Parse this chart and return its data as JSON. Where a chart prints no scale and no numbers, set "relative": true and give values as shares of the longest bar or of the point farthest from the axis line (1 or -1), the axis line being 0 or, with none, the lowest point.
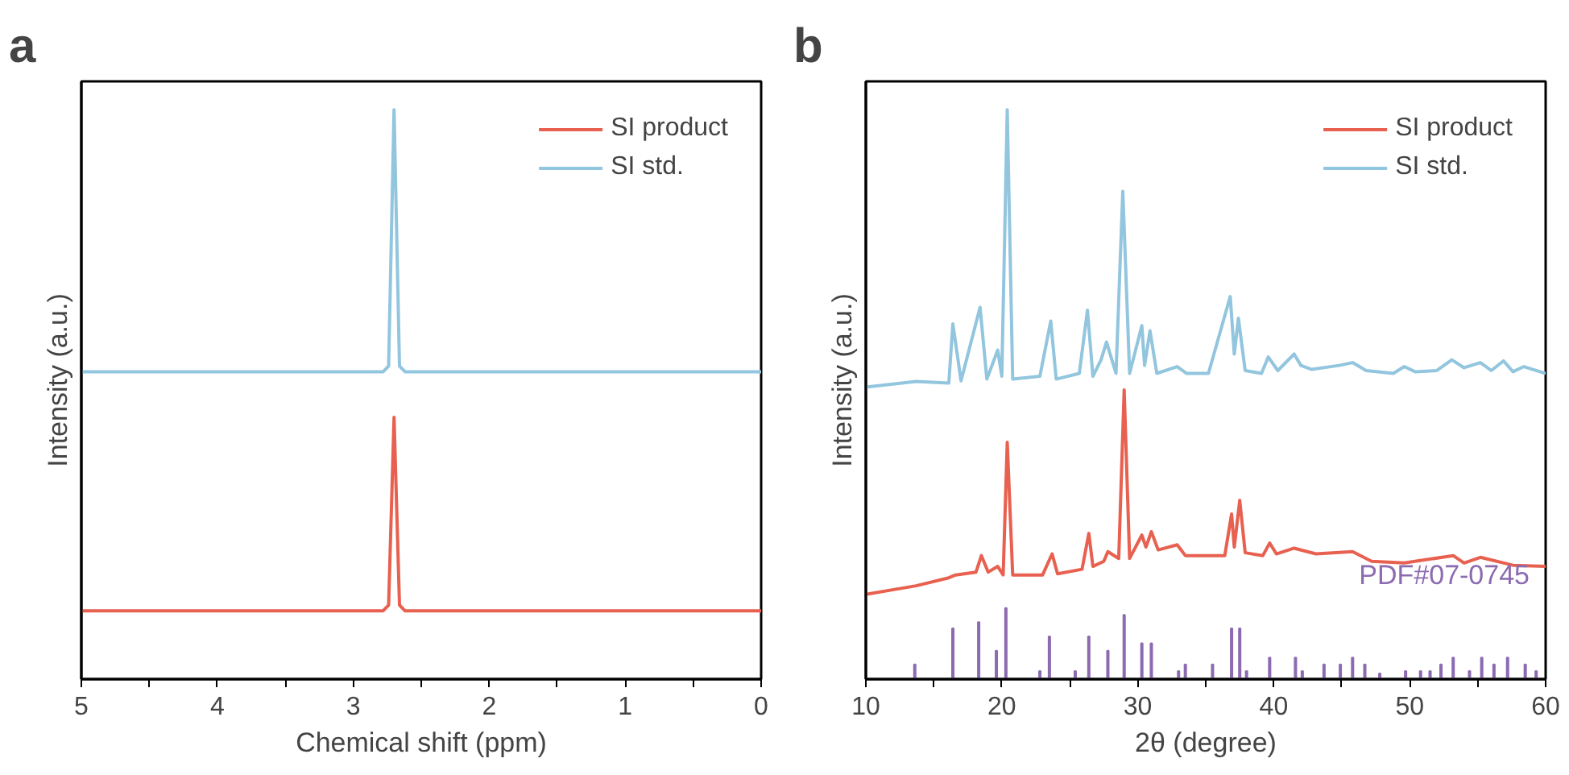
{
  "chart_data": [
    {
      "type": "line",
      "title": "a",
      "xlabel": "Chemical shift (ppm)",
      "ylabel": "Intensity (a.u.)",
      "relative": true,
      "tick_labels": "x",
      "legend": "top right",
      "grid": false,
      "marker": "none",
      "line_style": "solid",
      "xlim": [
        5,
        0
      ],
      "xticks": [
        5,
        {
          "value": 4.5,
          "label": null
        },
        4,
        {
          "value": 3.5,
          "label": null
        },
        3,
        {
          "value": 2.5,
          "label": null
        },
        2,
        {
          "value": 1.5,
          "label": null
        },
        1,
        {
          "value": 0.5,
          "label": null
        },
        0
      ],
      "series": [
        {
          "name": "SI product",
          "color": "#e8604f",
          "x": [
            5,
            2.78,
            2.74,
            2.7,
            2.66,
            2.62,
            0
          ],
          "values": [
            0.12,
            0.12,
            0.13,
            0.46,
            0.13,
            0.12,
            0.12
          ]
        },
        {
          "name": "SI std.",
          "color": "#92c5de",
          "x": [
            5,
            2.78,
            2.74,
            2.7,
            2.66,
            2.62,
            0
          ],
          "values": [
            0.54,
            0.54,
            0.55,
            1.0,
            0.55,
            0.54,
            0.54
          ]
        }
      ]
    },
    {
      "type": "line",
      "title": "b",
      "xlabel": "2θ (degree)",
      "ylabel": "Intensity (a.u.)",
      "relative": true,
      "tick_labels": "x",
      "legend": "top right",
      "grid": false,
      "marker": "none",
      "line_style": "solid",
      "xlim": [
        10,
        60
      ],
      "xticks": [
        10,
        {
          "value": 15,
          "label": null
        },
        20,
        {
          "value": 25,
          "label": null
        },
        30,
        {
          "value": 35,
          "label": null
        },
        40,
        {
          "value": 45,
          "label": null
        },
        50,
        {
          "value": 55,
          "label": null
        },
        60
      ],
      "series": [
        {
          "name": "SI product",
          "color": "#e8604f",
          "x": [
            10,
            13.7,
            16.1,
            16.6,
            18.1,
            18.5,
            19.0,
            19.7,
            20.1,
            20.4,
            20.8,
            23.0,
            23.7,
            24.1,
            25.9,
            26.4,
            26.7,
            27.5,
            27.8,
            28.6,
            29.0,
            29.4,
            30.3,
            30.6,
            31.0,
            31.5,
            32.9,
            33.5,
            36.4,
            36.9,
            37.1,
            37.5,
            37.9,
            39.2,
            39.7,
            40.2,
            41.5,
            43.1,
            45.8,
            47.2,
            49.6,
            53.2,
            54.0,
            55.2,
            57.6,
            60
          ],
          "values": [
            0.149,
            0.164,
            0.178,
            0.183,
            0.188,
            0.217,
            0.188,
            0.198,
            0.183,
            0.416,
            0.183,
            0.183,
            0.22,
            0.185,
            0.193,
            0.256,
            0.198,
            0.207,
            0.224,
            0.212,
            0.508,
            0.212,
            0.253,
            0.232,
            0.259,
            0.227,
            0.236,
            0.217,
            0.217,
            0.29,
            0.232,
            0.314,
            0.222,
            0.217,
            0.239,
            0.22,
            0.23,
            0.22,
            0.224,
            0.207,
            0.204,
            0.217,
            0.204,
            0.214,
            0.2,
            0.198
          ]
        },
        {
          "name": "SI std.",
          "color": "#92c5de",
          "x": [
            10,
            13.7,
            16.1,
            16.4,
            17.0,
            18.4,
            18.9,
            19.7,
            20.0,
            20.4,
            20.8,
            22.8,
            23.6,
            24.0,
            25.7,
            26.3,
            26.7,
            27.3,
            27.7,
            28.4,
            28.9,
            29.4,
            30.3,
            30.5,
            30.9,
            31.4,
            32.9,
            33.6,
            35.2,
            36.8,
            37.1,
            37.4,
            37.9,
            39.1,
            39.6,
            40.3,
            41.5,
            42.0,
            42.8,
            44.8,
            45.8,
            46.8,
            48.8,
            49.6,
            50.4,
            52.0,
            53.1,
            54.0,
            55.2,
            56.0,
            56.9,
            57.6,
            58.4,
            60
          ],
          "values": [
            0.513,
            0.523,
            0.52,
            0.624,
            0.524,
            0.653,
            0.527,
            0.578,
            0.532,
            1.0,
            0.527,
            0.532,
            0.629,
            0.527,
            0.537,
            0.648,
            0.532,
            0.561,
            0.592,
            0.537,
            0.857,
            0.537,
            0.621,
            0.551,
            0.612,
            0.537,
            0.549,
            0.537,
            0.537,
            0.672,
            0.571,
            0.634,
            0.542,
            0.537,
            0.566,
            0.542,
            0.571,
            0.551,
            0.544,
            0.551,
            0.556,
            0.542,
            0.537,
            0.549,
            0.54,
            0.542,
            0.561,
            0.547,
            0.556,
            0.542,
            0.559,
            0.54,
            0.549,
            0.537
          ]
        },
        {
          "name": "PDF#07-0745",
          "type": "bar",
          "color": "#8c6bb1",
          "x": [
            13.6,
            16.4,
            18.3,
            19.6,
            20.3,
            22.8,
            23.5,
            25.4,
            26.4,
            27.8,
            29.0,
            30.3,
            31.0,
            33.0,
            33.5,
            35.5,
            36.9,
            37.5,
            38.0,
            39.7,
            41.6,
            42.1,
            43.7,
            44.9,
            45.8,
            46.7,
            47.8,
            49.7,
            50.8,
            51.5,
            52.3,
            53.2,
            54.4,
            55.3,
            56.2,
            57.2,
            58.5,
            59.3
          ],
          "values": [
            0.026,
            0.089,
            0.1,
            0.05,
            0.125,
            0.014,
            0.075,
            0.014,
            0.075,
            0.05,
            0.113,
            0.063,
            0.063,
            0.014,
            0.026,
            0.026,
            0.089,
            0.089,
            0.014,
            0.038,
            0.038,
            0.014,
            0.026,
            0.026,
            0.038,
            0.026,
            0.01,
            0.014,
            0.014,
            0.014,
            0.026,
            0.038,
            0.014,
            0.038,
            0.026,
            0.038,
            0.026,
            0.014
          ]
        }
      ]
    }
  ]
}
